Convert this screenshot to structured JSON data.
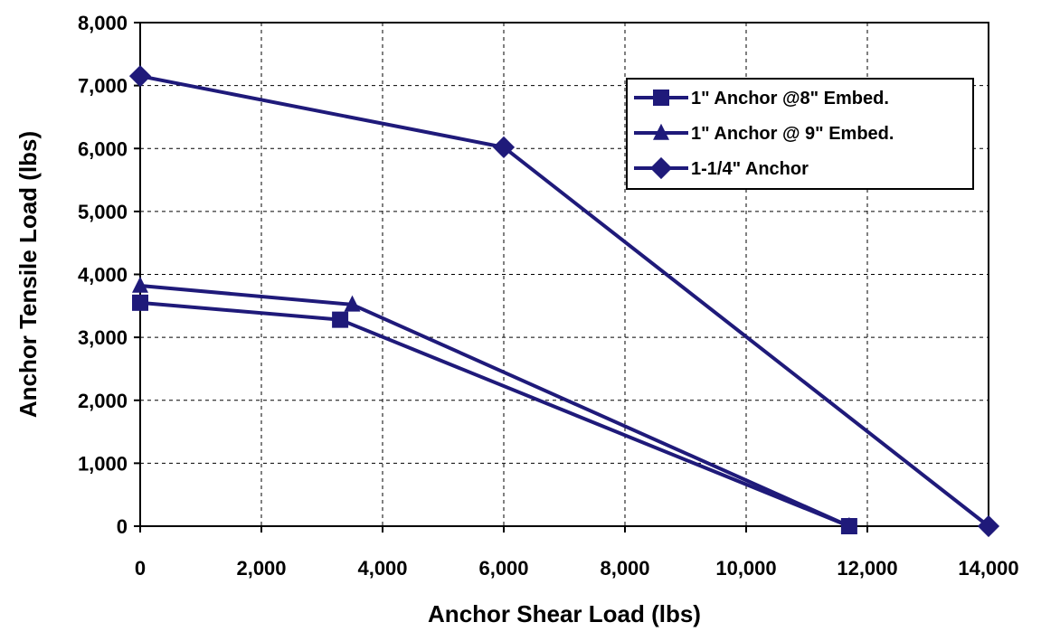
{
  "chart_data": {
    "type": "line",
    "xlabel": "Anchor Shear Load (lbs)",
    "ylabel": "Anchor Tensile Load (lbs)",
    "xlim": [
      0,
      14000
    ],
    "ylim": [
      0,
      8000
    ],
    "x_ticks": [
      "0",
      "2,000",
      "4,000",
      "6,000",
      "8,000",
      "10,000",
      "12,000",
      "14,000"
    ],
    "y_ticks": [
      "0",
      "1,000",
      "2,000",
      "3,000",
      "4,000",
      "5,000",
      "6,000",
      "7,000",
      "8,000"
    ],
    "grid": true,
    "legend_position": "top-right",
    "series": [
      {
        "name": "1\" Anchor @8\" Embed.",
        "marker": "square",
        "color": "#1f1a7a",
        "points": [
          [
            0,
            3550
          ],
          [
            3300,
            3280
          ],
          [
            11700,
            0
          ]
        ]
      },
      {
        "name": "1\" Anchor @ 9\" Embed.",
        "marker": "triangle",
        "color": "#1f1a7a",
        "points": [
          [
            0,
            3820
          ],
          [
            3500,
            3520
          ],
          [
            11700,
            0
          ]
        ]
      },
      {
        "name": "1-1/4\" Anchor",
        "marker": "diamond",
        "color": "#1f1a7a",
        "points": [
          [
            0,
            7150
          ],
          [
            6000,
            6020
          ],
          [
            14000,
            0
          ]
        ]
      }
    ]
  }
}
